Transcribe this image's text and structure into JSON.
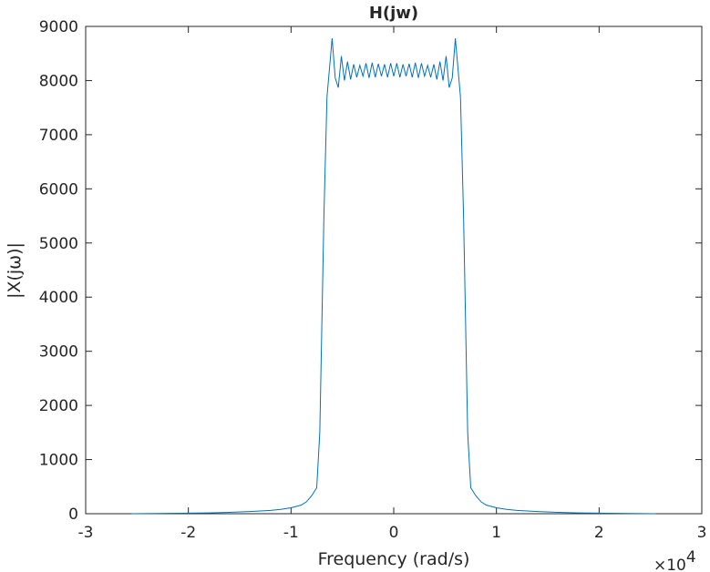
{
  "chart_data": {
    "type": "line",
    "title": "H(jw)",
    "xlabel": "Frequency (rad/s)",
    "ylabel": "|X(jω)|",
    "x_exponent_label": "×10",
    "x_exponent_power": "4",
    "xlim": [
      -3,
      3
    ],
    "ylim": [
      0,
      9000
    ],
    "x_ticks": [
      -3,
      -2,
      -1,
      0,
      1,
      2,
      3
    ],
    "x_tick_labels": [
      "-3",
      "-2",
      "-1",
      "0",
      "1",
      "2",
      "3"
    ],
    "y_ticks": [
      0,
      1000,
      2000,
      3000,
      4000,
      5000,
      6000,
      7000,
      8000,
      9000
    ],
    "y_tick_labels": [
      "0",
      "1000",
      "2000",
      "3000",
      "4000",
      "5000",
      "6000",
      "7000",
      "8000",
      "9000"
    ],
    "grid": false,
    "series": [
      {
        "color": "#0072BD",
        "x": [
          -2.55,
          -2.3,
          -2.0,
          -1.8,
          -1.6,
          -1.4,
          -1.2,
          -1.1,
          -1.0,
          -0.9,
          -0.85,
          -0.8,
          -0.75,
          -0.72,
          -0.7,
          -0.68,
          -0.65,
          -0.6,
          -0.57,
          -0.54,
          -0.51,
          -0.48,
          -0.45,
          -0.42,
          -0.39,
          -0.36,
          -0.33,
          -0.3,
          -0.27,
          -0.24,
          -0.21,
          -0.18,
          -0.15,
          -0.12,
          -0.09,
          -0.06,
          -0.03,
          0.0,
          0.03,
          0.06,
          0.09,
          0.12,
          0.15,
          0.18,
          0.21,
          0.24,
          0.27,
          0.3,
          0.33,
          0.36,
          0.39,
          0.42,
          0.45,
          0.48,
          0.51,
          0.54,
          0.57,
          0.6,
          0.65,
          0.68,
          0.7,
          0.72,
          0.75,
          0.8,
          0.85,
          0.9,
          1.0,
          1.1,
          1.2,
          1.4,
          1.6,
          1.8,
          2.0,
          2.3,
          2.55
        ],
        "y": [
          0,
          5,
          10,
          15,
          25,
          40,
          60,
          80,
          110,
          160,
          220,
          330,
          480,
          1500,
          3500,
          5500,
          7700,
          8780,
          8050,
          7870,
          8450,
          8000,
          8350,
          8020,
          8300,
          8060,
          8280,
          8080,
          8320,
          8050,
          8330,
          8060,
          8310,
          8080,
          8300,
          8060,
          8320,
          8080,
          8320,
          8060,
          8300,
          8080,
          8310,
          8060,
          8330,
          8050,
          8320,
          8080,
          8280,
          8060,
          8300,
          8020,
          8350,
          8000,
          8450,
          7870,
          8050,
          8780,
          7700,
          5500,
          3500,
          1500,
          480,
          330,
          220,
          160,
          110,
          80,
          60,
          40,
          25,
          15,
          10,
          5,
          0
        ]
      }
    ]
  }
}
